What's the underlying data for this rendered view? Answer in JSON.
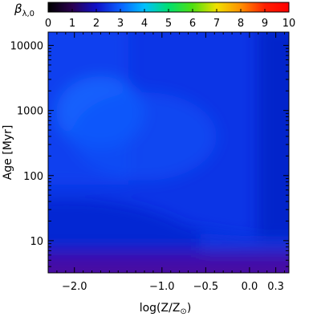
{
  "chart_data": {
    "type": "heatmap",
    "title": "",
    "xlabel": "log(Z/Z",
    "xlabel_sub": "⊙",
    "xlabel_end": ")",
    "ylabel": "Age [Myr]",
    "x_scale": "linear",
    "y_scale": "log",
    "xlim": [
      -2.3,
      0.45
    ],
    "ylim": [
      3.2,
      16000
    ],
    "x_ticks": [
      {
        "value": -2.0,
        "label": "−2.0"
      },
      {
        "value": -1.0,
        "label": "−1.0"
      },
      {
        "value": -0.5,
        "label": "−0.5"
      },
      {
        "value": 0.0,
        "label": "0.0"
      },
      {
        "value": 0.3,
        "label": "0.3"
      }
    ],
    "y_ticks": [
      {
        "value": 10,
        "label": "10"
      },
      {
        "value": 100,
        "label": "100"
      },
      {
        "value": 1000,
        "label": "1000"
      },
      {
        "value": 10000,
        "label": "10000"
      }
    ],
    "colorbar": {
      "label": "β",
      "label_sub": "λ,0",
      "range": [
        0,
        10
      ],
      "colormap": "rainbow",
      "stops": [
        "#000000",
        "#2b0050",
        "#1010c8",
        "#0a60ff",
        "#00c0ff",
        "#00e070",
        "#50e010",
        "#f0e000",
        "#ff9000",
        "#ff2000",
        "#ff0000"
      ],
      "ticks": [
        "0",
        "1",
        "2",
        "3",
        "4",
        "5",
        "6",
        "7",
        "8",
        "9",
        "10"
      ]
    },
    "field_summary": "beta values mostly between 1.5 and 2.5 across the grid; lowest (~1) at ages below 5 Myr"
  }
}
